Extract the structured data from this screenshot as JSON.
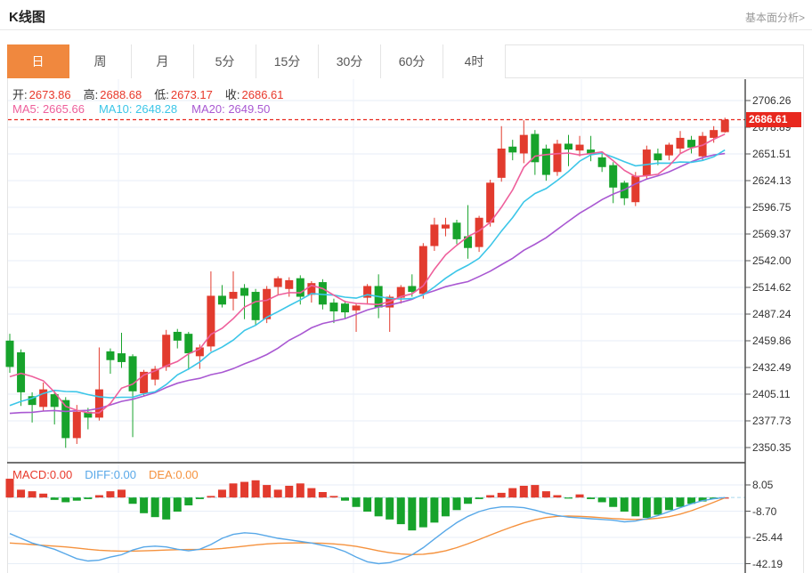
{
  "header": {
    "title": "K线图",
    "link": "基本面分析>"
  },
  "tabs": {
    "items": [
      "日",
      "周",
      "月",
      "5分",
      "15分",
      "30分",
      "60分",
      "4时"
    ],
    "selected_index": 0,
    "selected_label": "日"
  },
  "legend": {
    "ohlc": [
      {
        "label": "开:",
        "value": "2673.86"
      },
      {
        "label": "高:",
        "value": "2688.68"
      },
      {
        "label": "低:",
        "value": "2673.17"
      },
      {
        "label": "收:",
        "value": "2686.61"
      }
    ],
    "ma": [
      {
        "label": "MA5:",
        "value": "2665.66",
        "color": "#ee5f9b"
      },
      {
        "label": "MA10:",
        "value": "2648.28",
        "color": "#3cc6e8"
      },
      {
        "label": "MA20:",
        "value": "2649.50",
        "color": "#a958d2"
      }
    ]
  },
  "chart_data": {
    "type": "candlestick_with_macd",
    "title": "K线图",
    "period_selected": "日",
    "price_axis_ticks": [
      "2706.26",
      "2678.89",
      "2651.51",
      "2624.13",
      "2596.75",
      "2569.37",
      "2542.00",
      "2514.62",
      "2487.24",
      "2459.86",
      "2432.49",
      "2405.11",
      "2377.73",
      "2350.35"
    ],
    "price_axis_top": 2706.26,
    "price_axis_step": 27.38,
    "current_price": "2686.61",
    "last_candle": {
      "open": 2673.86,
      "high": 2688.68,
      "low": 2673.17,
      "close": 2686.61
    },
    "ma_values": {
      "MA5": 2665.66,
      "MA10": 2648.28,
      "MA20": 2649.5
    },
    "candles_ohlc": [
      [
        2460,
        2467,
        2427,
        2433
      ],
      [
        2448,
        2451,
        2393,
        2407
      ],
      [
        2403,
        2407,
        2376,
        2394
      ],
      [
        2392,
        2417,
        2388,
        2410
      ],
      [
        2405,
        2409,
        2374,
        2392
      ],
      [
        2399,
        2402,
        2350,
        2360
      ],
      [
        2360,
        2394,
        2354,
        2387
      ],
      [
        2387,
        2391,
        2369,
        2381
      ],
      [
        2381,
        2453,
        2378,
        2410
      ],
      [
        2449,
        2452,
        2426,
        2440
      ],
      [
        2447,
        2468,
        2432,
        2438
      ],
      [
        2444,
        2446,
        2361,
        2408
      ],
      [
        2406,
        2430,
        2403,
        2428
      ],
      [
        2420,
        2434,
        2414,
        2431
      ],
      [
        2433,
        2471,
        2429,
        2466
      ],
      [
        2469,
        2472,
        2452,
        2460
      ],
      [
        2467,
        2469,
        2430,
        2447
      ],
      [
        2444,
        2456,
        2431,
        2453
      ],
      [
        2454,
        2531,
        2449,
        2506
      ],
      [
        2506,
        2517,
        2494,
        2497
      ],
      [
        2503,
        2531,
        2491,
        2510
      ],
      [
        2514,
        2518,
        2482,
        2506
      ],
      [
        2510,
        2513,
        2476,
        2481
      ],
      [
        2482,
        2516,
        2478,
        2513
      ],
      [
        2515,
        2526,
        2507,
        2524
      ],
      [
        2513,
        2525,
        2505,
        2522
      ],
      [
        2524,
        2527,
        2497,
        2505
      ],
      [
        2507,
        2521,
        2499,
        2519
      ],
      [
        2520,
        2523,
        2492,
        2497
      ],
      [
        2499,
        2503,
        2478,
        2490
      ],
      [
        2498,
        2501,
        2483,
        2489
      ],
      [
        2491,
        2498,
        2469,
        2496
      ],
      [
        2504,
        2518,
        2497,
        2516
      ],
      [
        2516,
        2528,
        2483,
        2494
      ],
      [
        2494,
        2507,
        2469,
        2505
      ],
      [
        2504,
        2517,
        2498,
        2515
      ],
      [
        2516,
        2528,
        2505,
        2510
      ],
      [
        2508,
        2560,
        2503,
        2557
      ],
      [
        2557,
        2586,
        2552,
        2579
      ],
      [
        2575,
        2586,
        2567,
        2579
      ],
      [
        2581,
        2584,
        2559,
        2564
      ],
      [
        2567,
        2599,
        2544,
        2555
      ],
      [
        2556,
        2588,
        2551,
        2586
      ],
      [
        2581,
        2625,
        2577,
        2622
      ],
      [
        2627,
        2680,
        2623,
        2657
      ],
      [
        2659,
        2666,
        2645,
        2653
      ],
      [
        2652,
        2686,
        2642,
        2671
      ],
      [
        2672,
        2676,
        2630,
        2643
      ],
      [
        2657,
        2661,
        2624,
        2630
      ],
      [
        2633,
        2666,
        2629,
        2662
      ],
      [
        2662,
        2671,
        2639,
        2656
      ],
      [
        2655,
        2670,
        2649,
        2661
      ],
      [
        2656,
        2670,
        2644,
        2651
      ],
      [
        2648,
        2652,
        2633,
        2638
      ],
      [
        2640,
        2643,
        2601,
        2617
      ],
      [
        2622,
        2624,
        2599,
        2606
      ],
      [
        2602,
        2633,
        2598,
        2629
      ],
      [
        2629,
        2660,
        2625,
        2656
      ],
      [
        2652,
        2657,
        2640,
        2645
      ],
      [
        2650,
        2663,
        2645,
        2661
      ],
      [
        2657,
        2675,
        2651,
        2668
      ],
      [
        2666,
        2670,
        2652,
        2658
      ],
      [
        2649,
        2674,
        2645,
        2670
      ],
      [
        2668,
        2680,
        2663,
        2676
      ],
      [
        2673.86,
        2688.68,
        2673.17,
        2686.61
      ]
    ],
    "ma_prehistory_closes": [
      2392,
      2388,
      2384,
      2381,
      2378,
      2375,
      2372,
      2370,
      2368,
      2366,
      2364,
      2362,
      2361,
      2360,
      2372,
      2390,
      2410,
      2432,
      2450
    ],
    "macd": {
      "labels": {
        "macd": "MACD:0.00",
        "diff": "DIFF:0.00",
        "dea": "DEA:0.00"
      },
      "axis_ticks": [
        "8.05",
        "-8.70",
        "-25.44",
        "-42.19"
      ],
      "axis_top": 8.05,
      "axis_step": 16.75,
      "hist": [
        12,
        5,
        4,
        2.5,
        -1.5,
        -3,
        -2,
        -1,
        1.5,
        4,
        5,
        -4,
        -10,
        -12.5,
        -14,
        -9,
        -5,
        -1,
        1,
        5,
        9,
        10,
        11,
        8,
        5,
        7.5,
        9,
        6,
        3.5,
        1,
        -2,
        -6,
        -9,
        -12,
        -14,
        -17,
        -21,
        -19,
        -16,
        -12,
        -8,
        -4,
        -1,
        1.5,
        3,
        6,
        7.5,
        8,
        4,
        1.5,
        -0.5,
        2,
        -1,
        -3,
        -6,
        -9,
        -12,
        -13,
        -11,
        -8,
        -6,
        -4,
        -2.5,
        -1,
        0
      ],
      "diff": [
        -23,
        -26,
        -29,
        -31,
        -33,
        -36,
        -39,
        -40.5,
        -40,
        -38,
        -36.5,
        -33.5,
        -31.5,
        -31,
        -31.5,
        -33,
        -34,
        -33,
        -30,
        -26,
        -23.5,
        -22.5,
        -23,
        -24.5,
        -26,
        -27,
        -28,
        -29,
        -30.5,
        -32,
        -34.5,
        -38,
        -41,
        -42.2,
        -41.5,
        -39.5,
        -36.5,
        -32,
        -26.5,
        -21,
        -16,
        -12,
        -9,
        -7,
        -6,
        -6,
        -6.5,
        -8,
        -10,
        -11.5,
        -12.5,
        -13,
        -13.5,
        -14,
        -14.5,
        -15.5,
        -15,
        -13.5,
        -11.5,
        -9,
        -6.5,
        -4,
        -2,
        -0.8,
        0
      ],
      "dea": [
        -29,
        -29.5,
        -30,
        -30.5,
        -31,
        -31.5,
        -32.2,
        -33,
        -33.6,
        -34,
        -34.2,
        -34.2,
        -34,
        -33.8,
        -33.5,
        -33.3,
        -33.2,
        -33.2,
        -33,
        -32.5,
        -31.8,
        -31,
        -30.2,
        -29.6,
        -29.2,
        -29,
        -28.9,
        -29,
        -29.2,
        -29.6,
        -30.2,
        -31.2,
        -32.5,
        -34,
        -35.2,
        -36,
        -36.4,
        -36.2,
        -35.4,
        -34,
        -32,
        -29.5,
        -26.8,
        -24,
        -21.2,
        -18.6,
        -16.2,
        -14.2,
        -12.8,
        -12,
        -11.8,
        -12,
        -12.4,
        -12.9,
        -13.4,
        -13.8,
        -14,
        -13.8,
        -13.2,
        -12.2,
        -10.6,
        -8.4,
        -5.8,
        -3,
        -0.2
      ]
    }
  },
  "colors": {
    "up_red": "#e23b2e",
    "down_green": "#17a32b",
    "ma5_pink": "#ee5f9b",
    "ma10_cyan": "#3cc6e8",
    "ma20_purple": "#a958d2",
    "diff_blue": "#58a8e8",
    "dea_orange": "#f5923e",
    "tab_orange": "#f0883e",
    "price_tag_red": "#e8281e",
    "grid": "#e7eef7",
    "axis_dark": "#555555",
    "value_red": "#e8392b"
  }
}
